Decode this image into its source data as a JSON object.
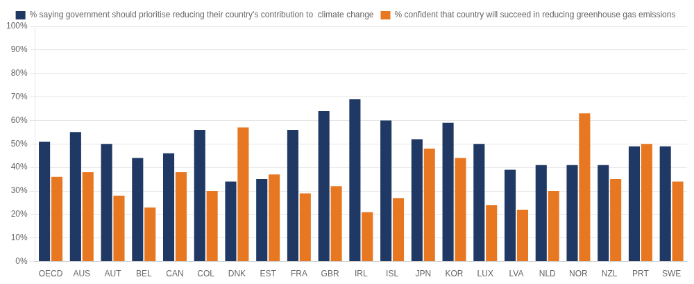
{
  "chart_data": {
    "type": "bar",
    "categories": [
      "OECD",
      "AUS",
      "AUT",
      "BEL",
      "CAN",
      "COL",
      "DNK",
      "EST",
      "FRA",
      "GBR",
      "IRL",
      "ISL",
      "JPN",
      "KOR",
      "LUX",
      "LVA",
      "NLD",
      "NOR",
      "NZL",
      "PRT",
      "SWE"
    ],
    "series": [
      {
        "name": "% saying government should prioritise reducing their country's contribution to  climate change",
        "color": "#1F3864",
        "values": [
          51,
          55,
          50,
          44,
          46,
          56,
          34,
          35,
          56,
          64,
          69,
          60,
          52,
          59,
          50,
          39,
          41,
          41,
          41,
          49,
          49
        ]
      },
      {
        "name": "% confident that country will succeed in reducing greenhouse gas emissions",
        "color": "#E87722",
        "values": [
          36,
          38,
          28,
          23,
          38,
          30,
          57,
          37,
          29,
          32,
          21,
          27,
          48,
          44,
          24,
          22,
          30,
          63,
          35,
          50,
          34
        ]
      }
    ],
    "ylim": [
      0,
      100
    ],
    "yticks": [
      {
        "value": 0,
        "label": "0%"
      },
      {
        "value": 10,
        "label": "10%"
      },
      {
        "value": 20,
        "label": "20%"
      },
      {
        "value": 30,
        "label": "30%"
      },
      {
        "value": 40,
        "label": "40%"
      },
      {
        "value": 50,
        "label": "50%"
      },
      {
        "value": 60,
        "label": "60%"
      },
      {
        "value": 70,
        "label": "70%"
      },
      {
        "value": 80,
        "label": "80%"
      },
      {
        "value": 90,
        "label": "90%"
      },
      {
        "value": 100,
        "label": "100%"
      }
    ],
    "grid": true,
    "legend": "top"
  }
}
